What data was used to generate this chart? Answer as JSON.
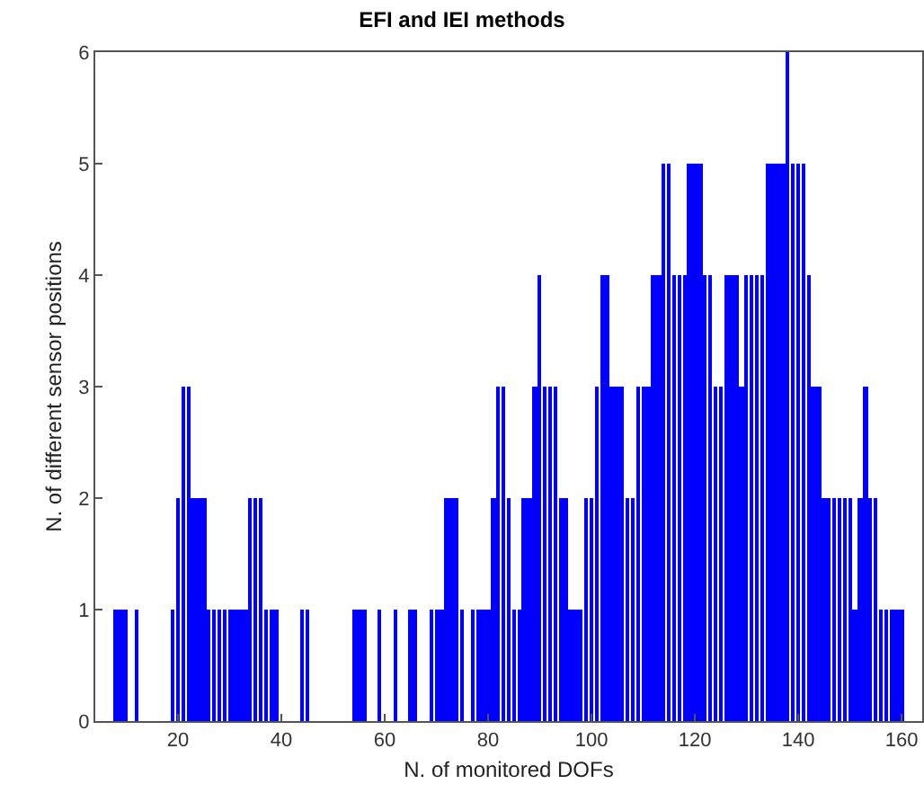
{
  "chart_data": {
    "type": "bar",
    "title": "EFI and IEI methods",
    "xlabel": "N. of monitored DOFs",
    "ylabel": "N. of different sensor positions",
    "x": [
      8,
      9,
      10,
      12,
      19,
      20,
      21,
      22,
      23,
      24,
      25,
      26,
      27,
      28,
      29,
      30,
      31,
      32,
      33,
      34,
      35,
      36,
      37,
      38,
      39,
      44,
      45,
      54,
      55,
      56,
      59,
      62,
      65,
      66,
      69,
      70,
      71,
      72,
      73,
      74,
      75,
      77,
      78,
      79,
      80,
      81,
      82,
      83,
      84,
      85,
      86,
      87,
      88,
      89,
      90,
      91,
      92,
      93,
      94,
      95,
      96,
      97,
      98,
      99,
      100,
      101,
      102,
      103,
      104,
      105,
      106,
      107,
      108,
      109,
      110,
      111,
      112,
      113,
      114,
      115,
      116,
      117,
      118,
      119,
      120,
      121,
      122,
      123,
      124,
      125,
      126,
      127,
      128,
      129,
      130,
      131,
      132,
      133,
      134,
      135,
      136,
      137,
      138,
      139,
      140,
      141,
      142,
      143,
      144,
      145,
      146,
      147,
      148,
      149,
      150,
      151,
      152,
      153,
      154,
      155,
      156,
      157,
      158,
      159,
      160
    ],
    "values": [
      1,
      1,
      1,
      1,
      1,
      2,
      3,
      3,
      2,
      2,
      2,
      1,
      1,
      1,
      1,
      1,
      1,
      1,
      1,
      2,
      2,
      2,
      1,
      1,
      1,
      1,
      1,
      1,
      1,
      1,
      1,
      1,
      1,
      1,
      1,
      1,
      1,
      2,
      2,
      2,
      1,
      1,
      1,
      1,
      1,
      2,
      3,
      3,
      2,
      1,
      1,
      2,
      2,
      3,
      4,
      3,
      3,
      3,
      2,
      2,
      1,
      1,
      1,
      2,
      2,
      3,
      4,
      4,
      3,
      3,
      3,
      2,
      2,
      3,
      3,
      3,
      4,
      4,
      5,
      5,
      4,
      4,
      4,
      5,
      5,
      5,
      4,
      4,
      3,
      3,
      4,
      4,
      4,
      3,
      4,
      4,
      4,
      4,
      5,
      5,
      5,
      5,
      6,
      5,
      5,
      5,
      4,
      3,
      3,
      2,
      2,
      2,
      2,
      2,
      2,
      1,
      2,
      3,
      2,
      2,
      1,
      1,
      1,
      1,
      1
    ],
    "color": "#0000ff",
    "xlim": [
      4,
      164
    ],
    "xticks": [
      20,
      40,
      60,
      80,
      100,
      120,
      140,
      160
    ],
    "ylim": [
      0,
      6
    ],
    "yticks": [
      0,
      1,
      2,
      3,
      4,
      5,
      6
    ],
    "grid": false
  }
}
